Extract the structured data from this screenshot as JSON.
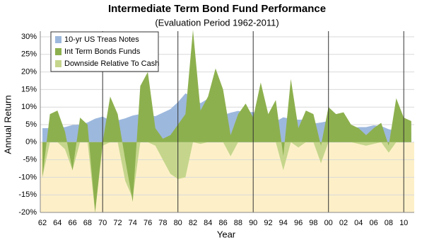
{
  "chart_data": {
    "type": "area",
    "title": "Intermediate Term Bond Fund Performance",
    "subtitle": "(Evaluation Period 1962-2011)",
    "x_label": "Year",
    "y_label": "Annual Return",
    "categories": [
      "62",
      null,
      "64",
      null,
      "66",
      null,
      "68",
      null,
      "70",
      null,
      "72",
      null,
      "74",
      null,
      "76",
      null,
      "78",
      null,
      "80",
      null,
      "82",
      null,
      "84",
      null,
      "86",
      null,
      "88",
      null,
      "90",
      null,
      "92",
      null,
      "94",
      null,
      "96",
      null,
      "98",
      null,
      "00",
      null,
      "02",
      null,
      "04",
      null,
      "06",
      null,
      "08",
      null,
      "10",
      null
    ],
    "series": [
      {
        "name": "10-yr US Treas Notes",
        "color": "#9db8dd",
        "values": [
          4,
          4,
          4.2,
          4.3,
          4.9,
          5,
          5.6,
          6.7,
          7.3,
          6.2,
          6.2,
          6.8,
          7.6,
          8,
          7.6,
          7.4,
          8.4,
          9.4,
          11.4,
          13.9,
          13,
          11.1,
          12.4,
          10.6,
          7.7,
          8.4,
          8.9,
          8.5,
          8.6,
          7.9,
          7,
          5.9,
          7.1,
          6.6,
          6.4,
          6.4,
          5.3,
          5.6,
          6,
          5,
          4.6,
          4,
          4.3,
          4.3,
          4.8,
          4.6,
          3.7,
          3.3,
          3.2,
          2.8
        ]
      },
      {
        "name": "Int Term Bonds Funds",
        "color": "#8db04e",
        "values": [
          -10,
          8,
          9,
          3,
          -8,
          7,
          5,
          -20,
          0,
          13,
          8,
          -5,
          -17,
          16,
          20,
          4,
          1,
          2,
          5,
          8,
          32,
          9,
          13,
          21,
          15,
          2,
          8,
          11,
          7,
          17,
          8,
          12,
          -4,
          18,
          4,
          9,
          8,
          -1,
          10,
          8,
          8.5,
          5,
          4,
          2,
          4,
          5.5,
          -1,
          12.5,
          7,
          6
        ]
      },
      {
        "name": "Downside Relative To Cash",
        "color": "#c5d68c",
        "values": [
          -10,
          0,
          0,
          -2,
          -8,
          0,
          0,
          -20,
          -1,
          0,
          0,
          -11,
          -16,
          0,
          0,
          -1,
          -5,
          -9,
          -10.5,
          -10,
          0,
          -0.5,
          0,
          0,
          0,
          -4,
          0,
          0,
          0,
          0,
          0,
          0,
          -8,
          0,
          -1.5,
          0,
          0,
          -6,
          0,
          0,
          0,
          0,
          -0.5,
          -1,
          -0.5,
          0,
          -3,
          0,
          0,
          0
        ]
      }
    ],
    "ylim": [
      -20,
      30
    ],
    "yticks": [
      {
        "value": -20,
        "label": "-20%"
      },
      {
        "value": -15,
        "label": "-15%"
      },
      {
        "value": -10,
        "label": "-10%"
      },
      {
        "value": -5,
        "label": "-5%"
      },
      {
        "value": 0,
        "label": "0%"
      },
      {
        "value": 5,
        "label": "5%"
      },
      {
        "value": 10,
        "label": "10%"
      },
      {
        "value": 15,
        "label": "15%"
      },
      {
        "value": 20,
        "label": "20%"
      },
      {
        "value": 25,
        "label": "25%"
      },
      {
        "value": 30,
        "label": "30%"
      }
    ],
    "grid": true
  }
}
